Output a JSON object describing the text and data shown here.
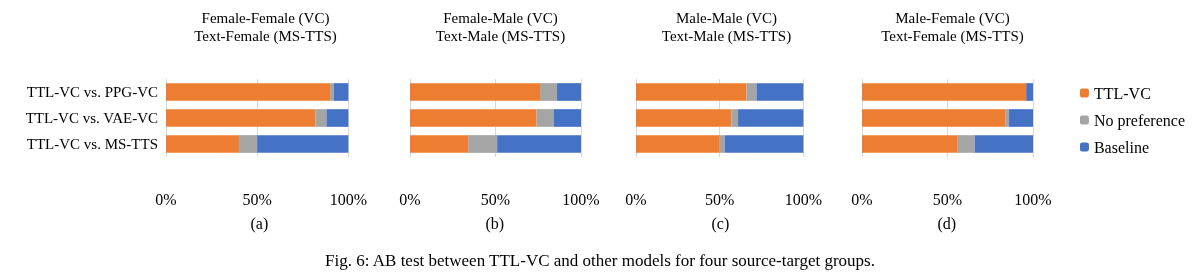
{
  "chart_data": [
    {
      "type": "bar",
      "orientation": "horizontal",
      "stacked": true,
      "title": "Female-Female (VC)\nText-Female (MS-TTS)",
      "categories": [
        "TTL-VC vs. PPG-VC",
        "TTL-VC vs. VAE-VC",
        "TTL-VC vs. MS-TTS"
      ],
      "series": [
        {
          "color": "#ed7d31",
          "values": [
            90,
            82,
            40
          ]
        },
        {
          "color": "#a5a5a5",
          "values": [
            2,
            6,
            10
          ]
        },
        {
          "color": "#4472c4",
          "values": [
            8,
            12,
            50
          ]
        }
      ],
      "xlim": [
        0,
        100
      ],
      "xticks": [
        {
          "value": 0,
          "label": "0%"
        },
        {
          "value": 50,
          "label": "50%"
        },
        {
          "value": 100,
          "label": "100%"
        }
      ],
      "grid": "x",
      "legend": false,
      "annotations": [
        "(a)",
        "Fig. 6: AB test between TTL-VC and other models for four source-target groups."
      ]
    },
    {
      "type": "bar",
      "orientation": "horizontal",
      "stacked": true,
      "title": "Female-Male (VC)\nText-Male (MS-TTS)",
      "categories": [
        null,
        null,
        null
      ],
      "series": [
        {
          "color": "#ed7d31",
          "values": [
            76,
            74,
            34
          ]
        },
        {
          "color": "#a5a5a5",
          "values": [
            10,
            10,
            17
          ]
        },
        {
          "color": "#4472c4",
          "values": [
            14,
            16,
            49
          ]
        }
      ],
      "xlim": [
        0,
        100
      ],
      "xticks": [
        {
          "value": 0,
          "label": "0%"
        },
        {
          "value": 50,
          "label": "50%"
        },
        {
          "value": 100,
          "label": "100%"
        }
      ],
      "grid": "x",
      "legend": false,
      "tick_labels": "x",
      "annotations": [
        "(b)"
      ]
    },
    {
      "type": "bar",
      "orientation": "horizontal",
      "stacked": true,
      "title": "Male-Male (VC)\nText-Male (MS-TTS)",
      "categories": [
        null,
        null,
        null
      ],
      "series": [
        {
          "color": "#ed7d31",
          "values": [
            66,
            57,
            50
          ]
        },
        {
          "color": "#a5a5a5",
          "values": [
            6,
            4,
            3
          ]
        },
        {
          "color": "#4472c4",
          "values": [
            28,
            39,
            47
          ]
        }
      ],
      "xlim": [
        0,
        100
      ],
      "xticks": [
        {
          "value": 0,
          "label": "0%"
        },
        {
          "value": 50,
          "label": "50%"
        },
        {
          "value": 100,
          "label": "100%"
        }
      ],
      "grid": "x",
      "legend": false,
      "tick_labels": "x",
      "annotations": [
        "(c)"
      ]
    },
    {
      "type": "bar",
      "orientation": "horizontal",
      "stacked": true,
      "title": "Male-Female (VC)\nText-Female (MS-TTS)",
      "categories": [
        null,
        null,
        null
      ],
      "series": [
        {
          "name": "TTL-VC",
          "color": "#ed7d31",
          "values": [
            96,
            84,
            56
          ]
        },
        {
          "name": "No preference",
          "color": "#a5a5a5",
          "values": [
            0,
            2,
            10
          ]
        },
        {
          "name": "Baseline",
          "color": "#4472c4",
          "values": [
            4,
            14,
            34
          ]
        }
      ],
      "xlim": [
        0,
        100
      ],
      "xticks": [
        {
          "value": 0,
          "label": "0%"
        },
        {
          "value": 50,
          "label": "50%"
        },
        {
          "value": 100,
          "label": "100%"
        }
      ],
      "grid": "x",
      "legend": "right",
      "tick_labels": "x",
      "annotations": [
        "(d)"
      ]
    }
  ]
}
